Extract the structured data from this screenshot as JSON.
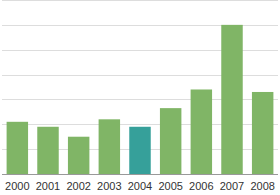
{
  "chart_data": {
    "type": "bar",
    "categories": [
      "2000",
      "2001",
      "2002",
      "2003",
      "2004",
      "2005",
      "2006",
      "2007",
      "2008"
    ],
    "values": [
      2.1,
      1.9,
      1.5,
      2.2,
      1.9,
      2.65,
      3.4,
      6.0,
      3.3
    ],
    "colors": [
      "#80b566",
      "#80b566",
      "#80b566",
      "#80b566",
      "#36a09a",
      "#80b566",
      "#80b566",
      "#80b566",
      "#80b566"
    ],
    "ylim": [
      0,
      7
    ],
    "yticks": [
      0,
      1,
      2,
      3,
      4,
      5,
      6,
      7
    ],
    "grid": true,
    "tick_labels": "x"
  }
}
